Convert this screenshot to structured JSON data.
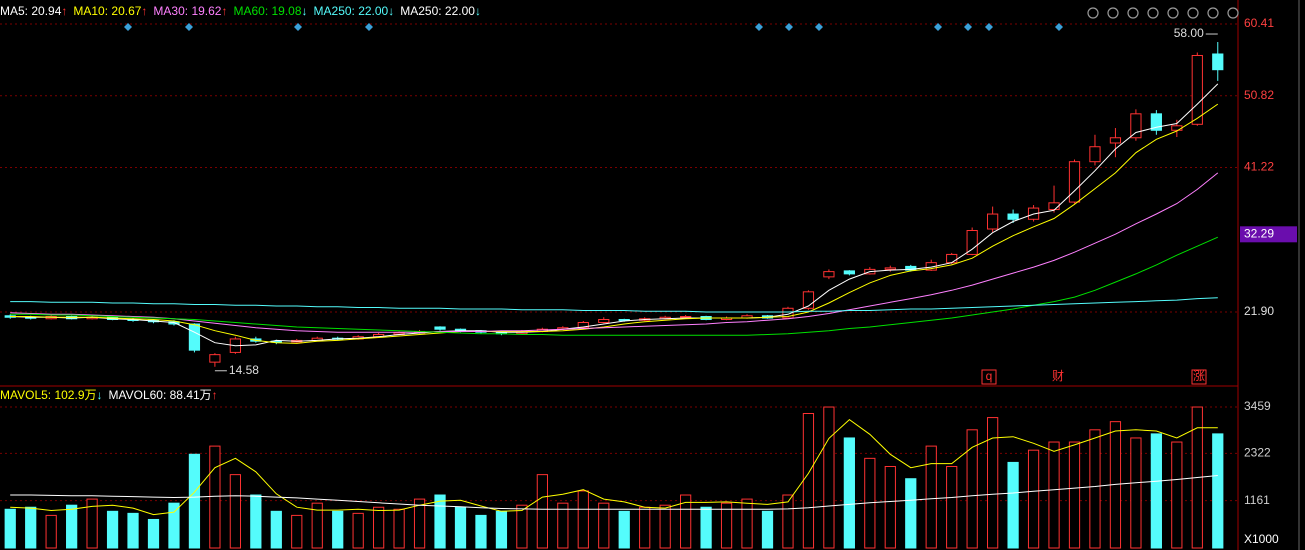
{
  "chart_data": [
    {
      "type": "candlestick",
      "open": [
        21.4,
        21.2,
        21.0,
        21.3,
        21.0,
        21.2,
        20.9,
        20.8,
        20.6,
        20.3,
        15.2,
        16.5,
        18.3,
        18.0,
        17.9,
        18.1,
        18.4,
        18.3,
        18.6,
        18.9,
        19.1,
        19.9,
        19.6,
        19.4,
        19.2,
        19.0,
        19.3,
        19.6,
        19.8,
        20.5,
        20.9,
        20.8,
        21.0,
        21.2,
        21.3,
        20.9,
        21.1,
        21.4,
        21.1,
        22.4,
        26.6,
        27.4,
        27.0,
        27.6,
        28.0,
        27.5,
        28.5,
        29.6,
        33.0,
        35.0,
        34.3,
        35.6,
        36.6,
        42.0,
        44.5,
        45.2,
        48.4,
        46.2,
        47.0,
        56.4
      ],
      "high": [
        21.6,
        21.4,
        21.5,
        21.4,
        21.4,
        21.3,
        21.1,
        20.9,
        20.8,
        20.4,
        16.4,
        18.6,
        18.6,
        18.2,
        18.3,
        18.6,
        18.6,
        18.8,
        19.1,
        19.3,
        19.5,
        20.0,
        19.7,
        19.5,
        19.3,
        19.5,
        19.8,
        20.0,
        20.7,
        21.2,
        21.0,
        21.2,
        21.4,
        21.5,
        21.4,
        21.3,
        21.6,
        21.5,
        22.6,
        24.8,
        27.6,
        27.5,
        27.9,
        28.1,
        28.2,
        28.9,
        29.8,
        33.2,
        36.0,
        35.6,
        36.2,
        38.8,
        42.3,
        45.6,
        46.5,
        49.0,
        48.9,
        47.6,
        56.6,
        58.0
      ],
      "low": [
        21.0,
        20.9,
        20.9,
        20.9,
        20.9,
        20.8,
        20.6,
        20.4,
        20.1,
        16.5,
        14.58,
        16.3,
        17.8,
        17.6,
        17.8,
        18.0,
        18.1,
        18.2,
        18.5,
        18.8,
        19.0,
        19.4,
        19.2,
        19.0,
        18.8,
        18.9,
        19.2,
        19.5,
        19.7,
        20.4,
        20.6,
        20.7,
        20.9,
        21.0,
        20.8,
        20.8,
        21.0,
        21.0,
        21.0,
        22.2,
        26.3,
        26.8,
        26.9,
        27.3,
        27.3,
        27.4,
        28.3,
        29.5,
        32.6,
        33.8,
        34.0,
        35.2,
        36.4,
        41.5,
        42.6,
        44.8,
        45.6,
        45.3,
        46.8,
        52.8
      ],
      "close": [
        21.2,
        21.1,
        21.3,
        21.0,
        21.2,
        20.9,
        20.8,
        20.6,
        20.3,
        16.8,
        16.2,
        18.3,
        18.0,
        17.9,
        18.1,
        18.4,
        18.3,
        18.6,
        18.9,
        19.1,
        19.3,
        19.6,
        19.4,
        19.2,
        19.0,
        19.3,
        19.6,
        19.8,
        20.5,
        20.9,
        20.8,
        21.0,
        21.2,
        21.3,
        20.9,
        21.1,
        21.4,
        21.1,
        22.4,
        24.6,
        27.3,
        27.0,
        27.6,
        27.8,
        27.5,
        28.5,
        29.6,
        32.8,
        35.0,
        34.3,
        35.8,
        36.5,
        42.0,
        44.0,
        45.2,
        48.4,
        46.2,
        46.8,
        56.2,
        54.3
      ],
      "up_color": "#ff3232",
      "down_color": "#54fcfc",
      "series": [
        {
          "label": "MA5: 20.94",
          "arrow": "↑",
          "color": "#ffffff",
          "values": [
            21.3,
            21.2,
            21.2,
            21.1,
            21.2,
            21.0,
            20.9,
            20.7,
            20.5,
            19.2,
            17.8,
            17.4,
            17.5,
            18.1,
            18.0,
            18.1,
            18.3,
            18.4,
            18.6,
            18.9,
            19.1,
            19.3,
            19.4,
            19.4,
            19.2,
            19.2,
            19.3,
            19.6,
            19.9,
            20.3,
            20.7,
            20.9,
            21.0,
            21.1,
            21.1,
            21.1,
            21.1,
            21.2,
            21.6,
            22.7,
            24.8,
            26.3,
            27.3,
            27.5,
            27.6,
            27.9,
            28.5,
            30.3,
            32.5,
            34.0,
            35.0,
            35.5,
            38.1,
            40.8,
            43.7,
            45.9,
            46.6,
            47.1,
            49.7,
            52.4
          ]
        },
        {
          "label": "MA10: 20.67",
          "arrow": "↑",
          "color": "#ffff00",
          "values": [
            21.3,
            21.3,
            21.2,
            21.2,
            21.2,
            21.1,
            21.0,
            20.9,
            20.7,
            20.2,
            19.4,
            18.8,
            18.1,
            17.8,
            17.7,
            18.0,
            18.1,
            18.3,
            18.5,
            18.7,
            18.9,
            19.1,
            19.3,
            19.3,
            19.3,
            19.3,
            19.3,
            19.4,
            19.6,
            19.9,
            20.3,
            20.6,
            20.8,
            21.0,
            21.1,
            21.1,
            21.1,
            21.2,
            21.3,
            21.9,
            23.1,
            24.5,
            25.8,
            26.8,
            27.4,
            27.7,
            28.2,
            29.1,
            30.7,
            32.1,
            33.3,
            34.4,
            36.3,
            38.4,
            40.5,
            43.2,
            45.0,
            46.1,
            47.8,
            49.7
          ]
        },
        {
          "label": "MA30: 19.62",
          "arrow": "↑",
          "color": "#ff80ff",
          "values": [
            21.8,
            21.7,
            21.6,
            21.6,
            21.5,
            21.4,
            21.3,
            21.2,
            21.0,
            20.7,
            20.4,
            20.1,
            19.8,
            19.6,
            19.4,
            19.3,
            19.2,
            19.2,
            19.2,
            19.2,
            19.2,
            19.3,
            19.3,
            19.3,
            19.4,
            19.4,
            19.5,
            19.6,
            19.7,
            19.8,
            19.9,
            20.0,
            20.1,
            20.2,
            20.3,
            20.5,
            20.6,
            20.8,
            21.0,
            21.3,
            21.7,
            22.2,
            22.7,
            23.2,
            23.7,
            24.2,
            24.8,
            25.5,
            26.3,
            27.1,
            27.9,
            28.8,
            29.9,
            31.1,
            32.3,
            33.7,
            35.0,
            36.4,
            38.3,
            40.5
          ]
        },
        {
          "label": "MA60: 19.08",
          "arrow": "↓",
          "color": "#00e000",
          "values": [
            21.6,
            21.6,
            21.5,
            21.5,
            21.4,
            21.3,
            21.2,
            21.1,
            21.0,
            20.9,
            20.7,
            20.5,
            20.3,
            20.1,
            19.9,
            19.8,
            19.7,
            19.6,
            19.5,
            19.4,
            19.3,
            19.2,
            19.1,
            19.0,
            19.0,
            18.9,
            18.9,
            18.8,
            18.8,
            18.8,
            18.8,
            18.8,
            18.8,
            18.8,
            18.8,
            18.8,
            18.8,
            18.9,
            19.0,
            19.2,
            19.4,
            19.7,
            19.9,
            20.2,
            20.5,
            20.8,
            21.1,
            21.5,
            21.9,
            22.3,
            22.8,
            23.3,
            23.9,
            24.8,
            25.9,
            27.0,
            28.2,
            29.5,
            30.7,
            31.9
          ]
        },
        {
          "label": "MA250: 22.00",
          "arrow": "↓",
          "color": "#54fcfc",
          "values": [
            23.3,
            23.3,
            23.2,
            23.2,
            23.2,
            23.1,
            23.1,
            23.0,
            23.0,
            22.9,
            22.9,
            22.8,
            22.8,
            22.7,
            22.7,
            22.6,
            22.6,
            22.5,
            22.5,
            22.4,
            22.4,
            22.4,
            22.3,
            22.3,
            22.3,
            22.2,
            22.2,
            22.2,
            22.1,
            22.1,
            22.1,
            22.0,
            22.0,
            22.0,
            21.9,
            21.9,
            21.9,
            21.9,
            21.9,
            22.0,
            22.0,
            22.1,
            22.1,
            22.2,
            22.3,
            22.3,
            22.4,
            22.5,
            22.6,
            22.7,
            22.8,
            22.9,
            23.0,
            23.1,
            23.2,
            23.3,
            23.4,
            23.5,
            23.7,
            23.8
          ]
        }
      ],
      "extra_legend": [
        {
          "label": "MA250: 22.00",
          "arrow": "↓",
          "color": "#ffffff"
        }
      ],
      "ylim": [
        12.41,
        62.95
      ],
      "yticks": [
        {
          "value": 21.9,
          "label": "21.90"
        },
        41.22,
        50.82,
        60.41
      ],
      "price_marker": 32.29,
      "high_label": "58.00",
      "low_label": "14.58",
      "events": [
        "q",
        "财",
        "涨"
      ],
      "grid": true
    },
    {
      "type": "bar",
      "values": [
        950,
        1000,
        800,
        1050,
        1200,
        900,
        850,
        700,
        1100,
        2300,
        2500,
        1800,
        1300,
        900,
        800,
        1100,
        900,
        850,
        1000,
        950,
        1200,
        1300,
        1000,
        800,
        900,
        1050,
        1800,
        1100,
        1400,
        1100,
        900,
        1000,
        1050,
        1300,
        1000,
        1100,
        1200,
        900,
        1300,
        3300,
        3459,
        2700,
        2200,
        2000,
        1700,
        2500,
        2000,
        2900,
        3200,
        2100,
        2400,
        2600,
        2600,
        2900,
        3100,
        2700,
        2800,
        2600,
        3459,
        2800
      ],
      "series": [
        {
          "label": "MAVOL5: 102.9万",
          "arrow": "↓",
          "color": "#ffff00",
          "values": [
            1000,
            980,
            920,
            950,
            1020,
            1050,
            980,
            820,
            880,
            1370,
            1970,
            2200,
            1870,
            1330,
            1000,
            930,
            930,
            950,
            920,
            930,
            1050,
            1150,
            1170,
            1030,
            900,
            920,
            1250,
            1320,
            1430,
            1200,
            1130,
            1000,
            980,
            1120,
            1120,
            1130,
            1100,
            1070,
            1130,
            1830,
            2690,
            3150,
            2790,
            2300,
            1970,
            2070,
            2070,
            2470,
            2700,
            2730,
            2570,
            2370,
            2530,
            2700,
            2870,
            2900,
            2870,
            2700,
            2950,
            2950
          ]
        },
        {
          "label": "MAVOL60: 88.41万",
          "arrow": "↑",
          "color": "#ffffff",
          "values": [
            1300,
            1300,
            1290,
            1280,
            1280,
            1270,
            1260,
            1250,
            1240,
            1250,
            1270,
            1280,
            1270,
            1250,
            1230,
            1200,
            1170,
            1140,
            1110,
            1080,
            1050,
            1030,
            1010,
            990,
            970,
            960,
            950,
            950,
            950,
            950,
            950,
            950,
            950,
            950,
            950,
            950,
            950,
            950,
            960,
            990,
            1030,
            1070,
            1110,
            1140,
            1170,
            1210,
            1240,
            1280,
            1320,
            1350,
            1390,
            1430,
            1470,
            1510,
            1560,
            1600,
            1640,
            1680,
            1730,
            1780
          ]
        }
      ],
      "ylim": [
        0,
        3754
      ],
      "yticks": [
        1161,
        2322,
        3459
      ],
      "unit_label": "X1000",
      "grid": true
    }
  ]
}
